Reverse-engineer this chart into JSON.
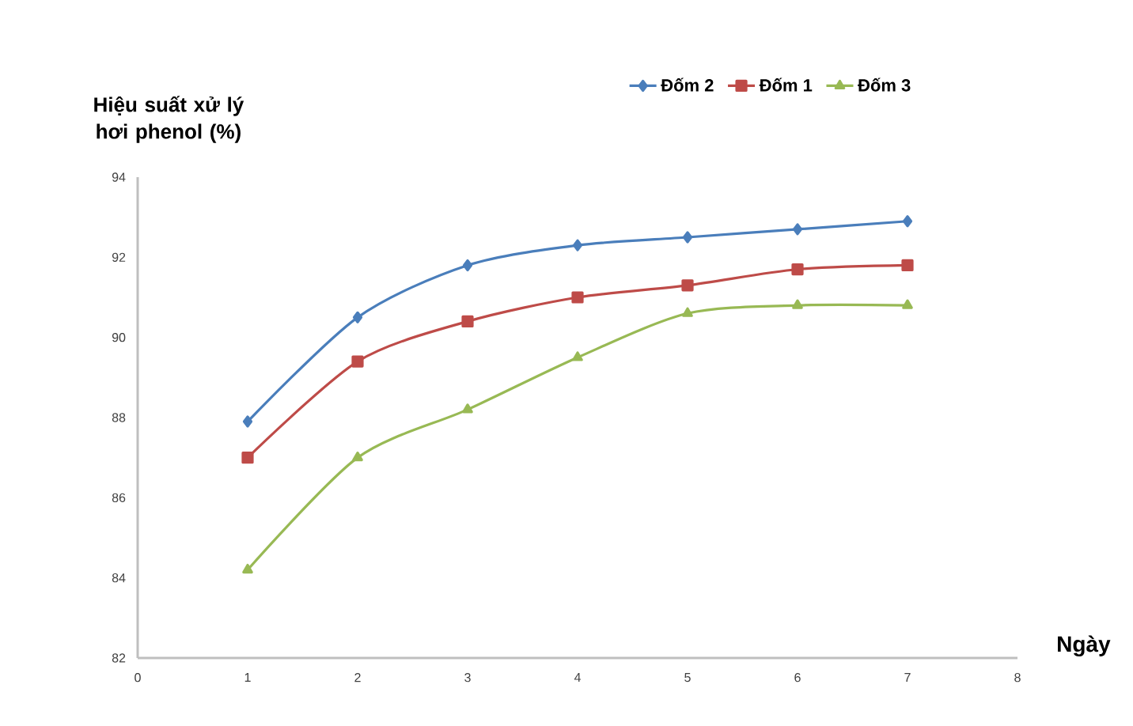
{
  "chart_data": {
    "type": "line",
    "ylabel": "Hiệu suất xử lý hơi phenol (%)",
    "xlabel": "Ngày",
    "x": [
      1,
      2,
      3,
      4,
      5,
      6,
      7
    ],
    "series": [
      {
        "name": "Đốm 2",
        "color": "#4a7ebb",
        "marker": "diamond",
        "values": [
          87.9,
          90.5,
          91.8,
          92.3,
          92.5,
          92.7,
          92.9
        ]
      },
      {
        "name": "Đốm 1",
        "color": "#be4b48",
        "marker": "square",
        "values": [
          87.0,
          89.4,
          90.4,
          91.0,
          91.3,
          91.7,
          91.8
        ]
      },
      {
        "name": "Đốm 3",
        "color": "#98b954",
        "marker": "triangle",
        "values": [
          84.2,
          87.0,
          88.2,
          89.5,
          90.6,
          90.8,
          90.8
        ]
      }
    ],
    "xlim": [
      0,
      8
    ],
    "xticks": [
      0,
      1,
      2,
      3,
      4,
      5,
      6,
      7,
      8
    ],
    "ylim": [
      82,
      94
    ],
    "yticks": [
      82,
      84,
      86,
      88,
      90,
      92,
      94
    ],
    "grid": false,
    "legend": "top",
    "line_style": "solid"
  }
}
